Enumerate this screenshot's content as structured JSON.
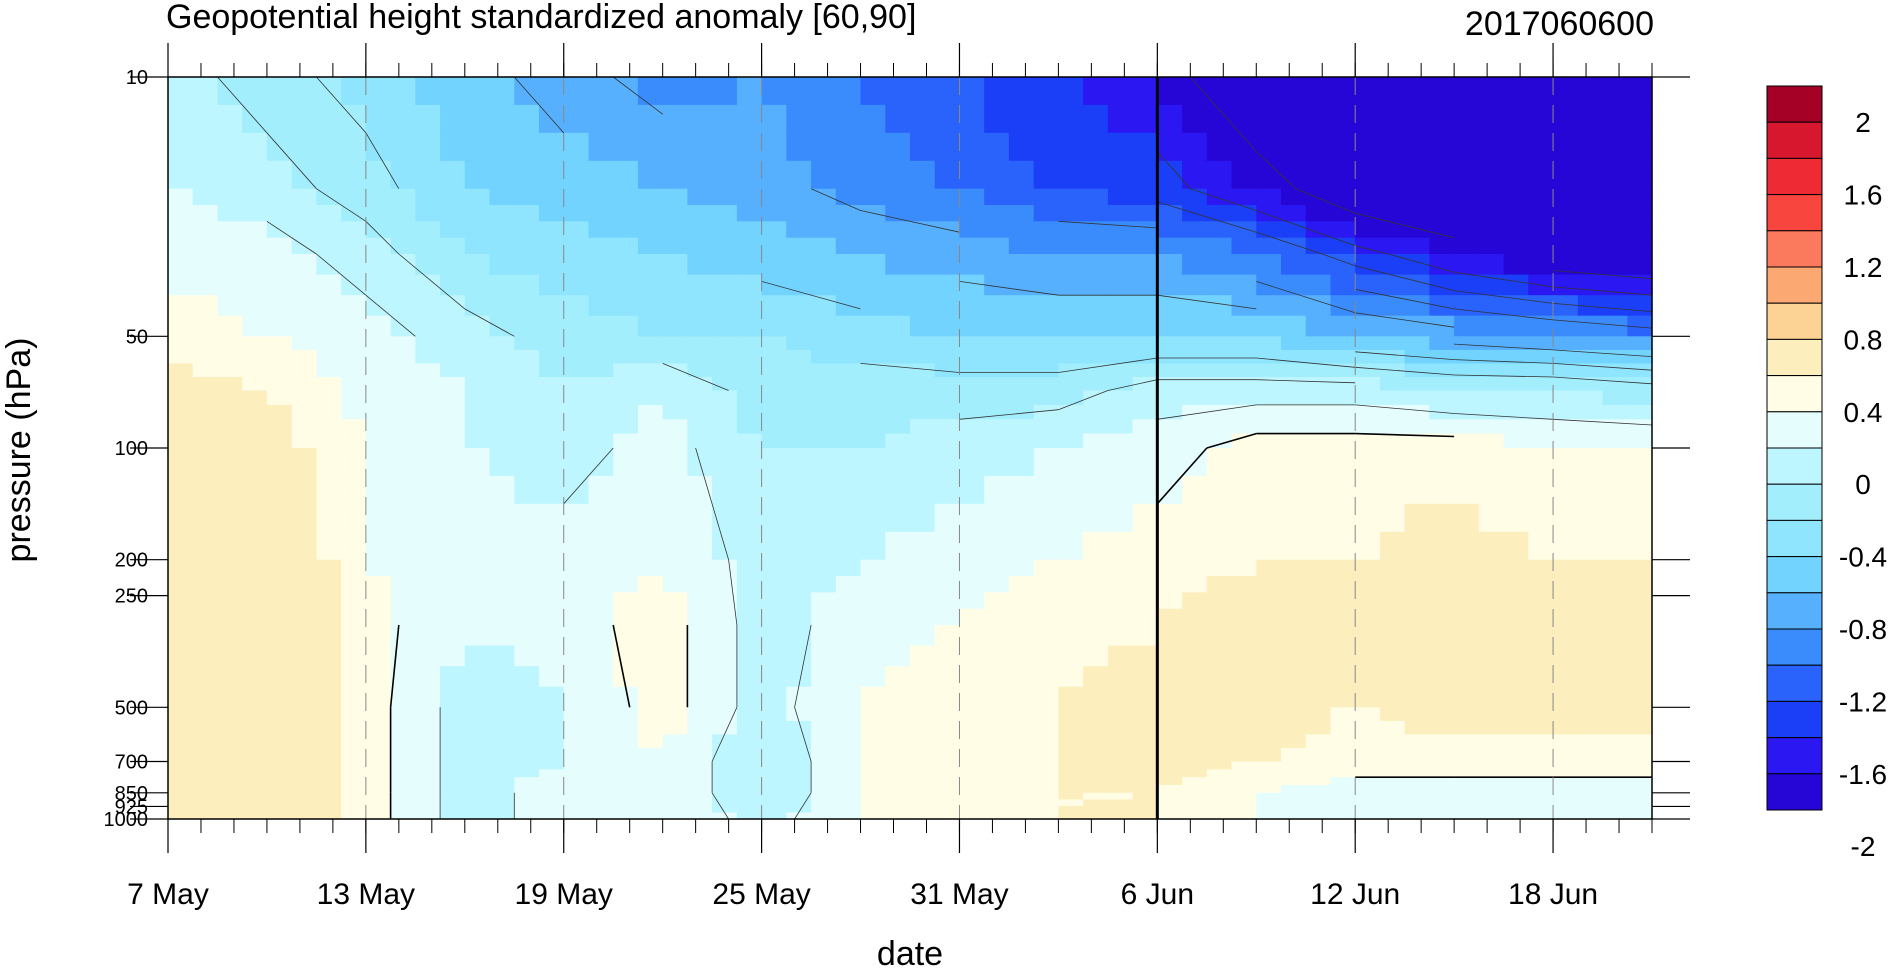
{
  "chart_data": {
    "type": "filled-contour",
    "title": "Geopotential height standardized anomaly [60,90]",
    "subtitle": "2017060600",
    "xlabel": "date",
    "ylabel": "pressure (hPa)",
    "x_range": [
      "2017-05-07",
      "2017-06-21"
    ],
    "x_ticks": [
      {
        "date": "2017-05-07",
        "label": "7 May"
      },
      {
        "date": "2017-05-13",
        "label": "13 May"
      },
      {
        "date": "2017-05-19",
        "label": "19 May"
      },
      {
        "date": "2017-05-25",
        "label": "25 May"
      },
      {
        "date": "2017-05-31",
        "label": "31 May"
      },
      {
        "date": "2017-06-06",
        "label": "6 Jun"
      },
      {
        "date": "2017-06-12",
        "label": "12 Jun"
      },
      {
        "date": "2017-06-18",
        "label": "18 Jun"
      }
    ],
    "y_scale": "log",
    "y_range": [
      1000,
      10
    ],
    "y_ticks": [
      {
        "value": 10,
        "label": "10"
      },
      {
        "value": 50,
        "label": "50"
      },
      {
        "value": 100,
        "label": "100"
      },
      {
        "value": 200,
        "label": "200"
      },
      {
        "value": 250,
        "label": "250"
      },
      {
        "value": 500,
        "label": "500"
      },
      {
        "value": 700,
        "label": "700"
      },
      {
        "value": 850,
        "label": "850"
      },
      {
        "value": 925,
        "label": "925"
      },
      {
        "value": 1000,
        "label": "1000"
      }
    ],
    "analysis_date_marker": "2017-06-06",
    "colorbar": {
      "labels": [
        {
          "value": 2,
          "label": "2"
        },
        {
          "value": 1.6,
          "label": "1.6"
        },
        {
          "value": 1.2,
          "label": "1.2"
        },
        {
          "value": 0.8,
          "label": "0.8"
        },
        {
          "value": 0.4,
          "label": "0.4"
        },
        {
          "value": 0,
          "label": "0"
        },
        {
          "value": -0.4,
          "label": "-0.4"
        },
        {
          "value": -0.8,
          "label": "-0.8"
        },
        {
          "value": -1.2,
          "label": "-1.2"
        },
        {
          "value": -1.6,
          "label": "-1.6"
        },
        {
          "value": -2,
          "label": "-2"
        }
      ],
      "colors": [
        "#a50026",
        "#d7172e",
        "#ee2b35",
        "#f8463f",
        "#fb7a5e",
        "#fca873",
        "#fdd295",
        "#fdeebe",
        "#fffde6",
        "#e6fdfe",
        "#bdf6fe",
        "#a3eefd",
        "#8ee5fd",
        "#72d3fe",
        "#56b0fe",
        "#3a8cfd",
        "#2a63fb",
        "#1b3ff7",
        "#2a17f2",
        "#2606d6"
      ]
    },
    "levels": [
      0.0,
      -0.2,
      -0.4,
      -0.6,
      -0.8,
      -1.0,
      -1.2,
      -1.4,
      -1.6,
      -1.8,
      -2.0,
      -2.2
    ],
    "anomaly_grid": {
      "dates": [
        "2017-05-07",
        "2017-05-10",
        "2017-05-13",
        "2017-05-16",
        "2017-05-19",
        "2017-05-22",
        "2017-05-25",
        "2017-05-28",
        "2017-05-31",
        "2017-06-03",
        "2017-06-06",
        "2017-06-09",
        "2017-06-12",
        "2017-06-15",
        "2017-06-18",
        "2017-06-21"
      ],
      "pressures": [
        10,
        20,
        30,
        50,
        70,
        100,
        200,
        300,
        500,
        700,
        850,
        1000
      ],
      "values": [
        [
          -0.3,
          -0.5,
          -0.7,
          -0.9,
          -1.1,
          -1.3,
          -1.2,
          -1.4,
          -1.6,
          -1.8,
          -2.0,
          -2.6,
          -3.0,
          -3.2,
          -3.4,
          -3.5
        ],
        [
          -0.2,
          -0.3,
          -0.5,
          -0.8,
          -0.9,
          -1.0,
          -1.1,
          -1.3,
          -1.4,
          -1.6,
          -1.7,
          -2.0,
          -2.5,
          -2.8,
          -3.0,
          -3.1
        ],
        [
          -0.1,
          -0.1,
          -0.3,
          -0.6,
          -0.7,
          -0.8,
          -0.9,
          -1.0,
          -1.1,
          -1.2,
          -1.2,
          -1.4,
          -1.7,
          -2.0,
          -2.2,
          -2.3
        ],
        [
          0.1,
          0.0,
          -0.1,
          -0.3,
          -0.5,
          -0.6,
          -0.6,
          -0.7,
          -0.8,
          -0.8,
          -0.8,
          -0.8,
          -1.0,
          -1.1,
          -1.2,
          -1.3
        ],
        [
          0.3,
          0.2,
          -0.1,
          -0.2,
          -0.4,
          -0.2,
          -0.5,
          -0.5,
          -0.5,
          -0.5,
          -0.3,
          -0.3,
          -0.3,
          -0.4,
          -0.4,
          -0.5
        ],
        [
          0.3,
          0.3,
          0.0,
          -0.2,
          -0.3,
          -0.1,
          -0.4,
          -0.4,
          -0.3,
          -0.2,
          -0.1,
          0.1,
          0.1,
          0.1,
          0.0,
          0.0
        ],
        [
          0.3,
          0.5,
          0.0,
          -0.1,
          -0.1,
          0.0,
          -0.3,
          -0.2,
          -0.1,
          0.0,
          0.1,
          0.2,
          0.2,
          0.3,
          0.2,
          0.2
        ],
        [
          0.3,
          0.6,
          0.1,
          -0.2,
          -0.1,
          0.1,
          -0.3,
          -0.1,
          0.0,
          0.1,
          0.2,
          0.3,
          0.3,
          0.3,
          0.3,
          0.3
        ],
        [
          0.3,
          0.5,
          0.1,
          -0.3,
          -0.2,
          0.1,
          -0.3,
          0.0,
          0.1,
          0.2,
          0.3,
          0.3,
          0.2,
          0.3,
          0.3,
          0.3
        ],
        [
          0.3,
          0.6,
          0.1,
          -0.3,
          -0.2,
          0.0,
          -0.4,
          0.0,
          0.1,
          0.2,
          0.3,
          0.2,
          0.1,
          0.1,
          0.1,
          0.1
        ],
        [
          0.3,
          0.6,
          0.1,
          -0.3,
          -0.1,
          0.0,
          -0.4,
          0.0,
          0.1,
          0.2,
          0.2,
          0.0,
          -0.1,
          -0.1,
          -0.1,
          -0.1
        ],
        [
          0.3,
          0.6,
          0.1,
          -0.3,
          -0.1,
          0.0,
          -0.3,
          0.0,
          0.1,
          0.2,
          0.2,
          0.0,
          -0.2,
          -0.2,
          -0.2,
          -0.2
        ]
      ]
    }
  }
}
